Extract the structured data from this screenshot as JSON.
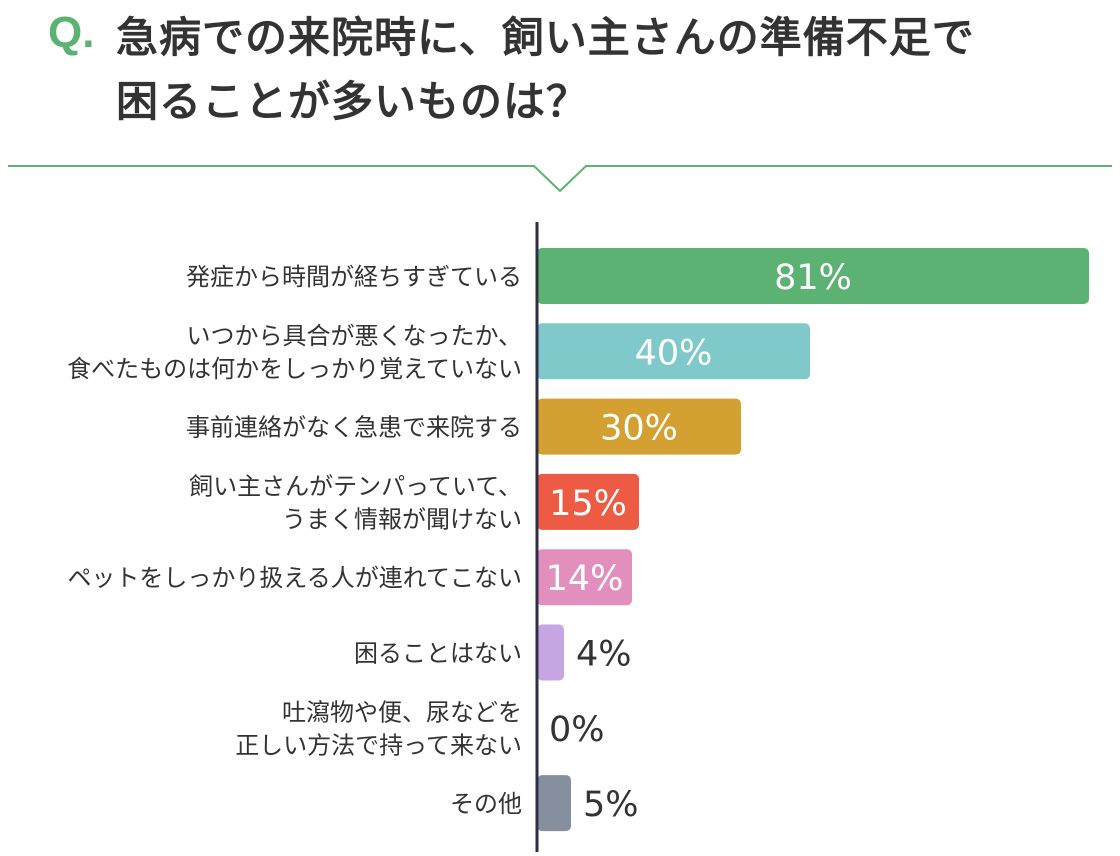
{
  "question": {
    "q_mark": "Q.",
    "line1": "急病での来院時に、飼い主さんの準備不足で",
    "line2": "困ることが多いものは？"
  },
  "chart_data": {
    "type": "bar",
    "orientation": "horizontal",
    "title": "急病での来院時に、飼い主さんの準備不足で困ることが多いものは？",
    "unit": "%",
    "xlim": [
      0,
      81
    ],
    "grid": false,
    "legend": "none",
    "bars": [
      {
        "label": [
          "発症から時間が経ちすぎている"
        ],
        "value": 81,
        "value_label": "81%",
        "color": "#5bb272"
      },
      {
        "label": [
          "いつから具合が悪くなったか、",
          "食べたものは何かをしっかり覚えていない"
        ],
        "value": 40,
        "value_label": "40%",
        "color": "#80c9cb"
      },
      {
        "label": [
          "事前連絡がなく急患で来院する"
        ],
        "value": 30,
        "value_label": "30%",
        "color": "#d3a031"
      },
      {
        "label": [
          "飼い主さんがテンパっていて、",
          "うまく情報が聞けない"
        ],
        "value": 15,
        "value_label": "15%",
        "color": "#ee5b45"
      },
      {
        "label": [
          "ペットをしっかり扱える人が連れてこない"
        ],
        "value": 14,
        "value_label": "14%",
        "color": "#e38fbd"
      },
      {
        "label": [
          "困ることはない"
        ],
        "value": 4,
        "value_label": "4%",
        "color": "#c6a5e3"
      },
      {
        "label": [
          "吐瀉物や便、尿などを",
          "正しい方法で持って来ない"
        ],
        "value": 0,
        "value_label": "0%",
        "color": "#b0b0b0"
      },
      {
        "label": [
          "その他"
        ],
        "value": 5,
        "value_label": "5%",
        "color": "#858f9d"
      }
    ],
    "colors": {
      "accent": "#5bb272",
      "axis": "#2e2e45",
      "value_inside": "#ffffff",
      "value_outside": "#333333"
    }
  }
}
